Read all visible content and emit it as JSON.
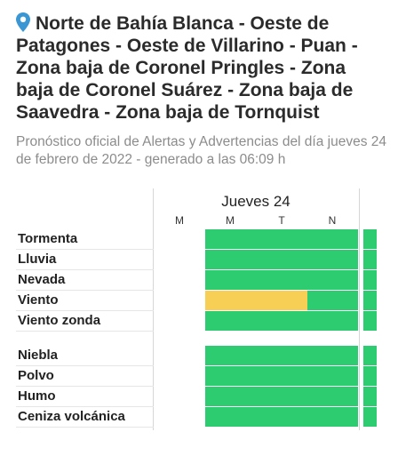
{
  "header": {
    "title": "Norte de Bahía Blanca - Oeste de Patagones - Oeste de Villarino - Puan - Zona baja de Coronel Pringles - Zona baja de Coronel Suárez - Zona baja de Saavedra - Zona baja de Tornquist",
    "subtitle": "Pronóstico oficial de Alertas y Advertencias del día jueves 24 de febrero de 2022 - generado a las 06:09 h",
    "pin_icon": "location-pin-icon",
    "pin_color": "#3a97d4"
  },
  "forecast": {
    "day_label": "Jueves 24",
    "periods": [
      "M",
      "M",
      "T",
      "N"
    ],
    "colors": {
      "green": "#2ecc71",
      "yellow": "#f7cf55"
    },
    "group_a": [
      {
        "label": "Tormenta"
      },
      {
        "label": "Lluvia"
      },
      {
        "label": "Nevada"
      },
      {
        "label": "Viento",
        "yellow_fraction": 0.5
      },
      {
        "label": "Viento zonda"
      }
    ],
    "group_b": [
      {
        "label": "Niebla"
      },
      {
        "label": "Polvo"
      },
      {
        "label": "Humo"
      },
      {
        "label": "Ceniza volcánica"
      }
    ]
  }
}
